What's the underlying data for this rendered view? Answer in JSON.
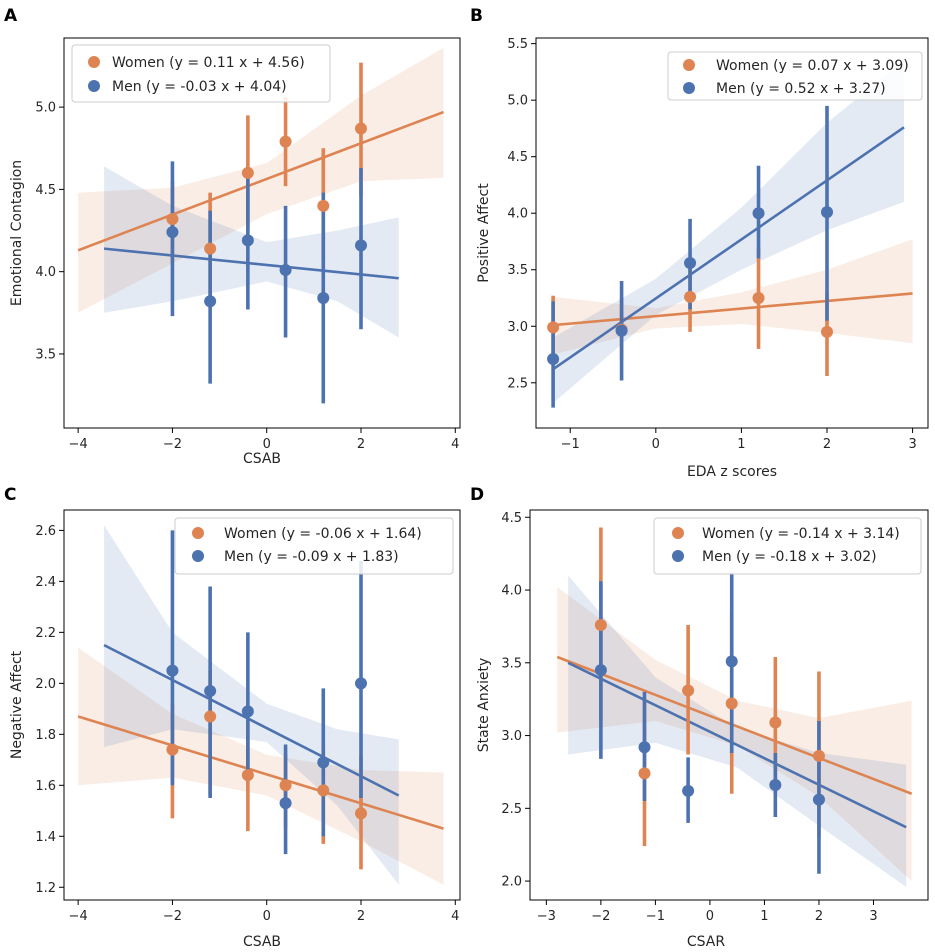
{
  "colors": {
    "women": "#DD8452",
    "men": "#4C72B0"
  },
  "chart_data": [
    {
      "panel": "A",
      "type": "scatter",
      "xlabel": "CSAB",
      "ylabel": "Emotional Contagion",
      "xlim": [
        -4.3,
        4.1
      ],
      "ylim": [
        3.05,
        5.42
      ],
      "xticks": [
        -4,
        -2,
        0,
        2,
        4
      ],
      "xtick_labels": [
        "−4",
        "−2",
        "0",
        "2",
        "4"
      ],
      "yticks": [
        3.5,
        4.0,
        4.5,
        5.0
      ],
      "ytick_labels": [
        "3.5",
        "4.0",
        "4.5",
        "5.0"
      ],
      "legend_position": "top-left",
      "series": [
        {
          "name": "Women (y = 0.11 x + 4.56)",
          "key": "women",
          "points": [
            {
              "x": -2.0,
              "y": 4.32,
              "lo": 4.06,
              "hi": 4.55
            },
            {
              "x": -1.2,
              "y": 4.14,
              "lo": 3.8,
              "hi": 4.48
            },
            {
              "x": -0.4,
              "y": 4.6,
              "lo": 4.25,
              "hi": 4.95
            },
            {
              "x": 0.4,
              "y": 4.79,
              "lo": 4.52,
              "hi": 5.06
            },
            {
              "x": 1.2,
              "y": 4.4,
              "lo": 4.06,
              "hi": 4.75
            },
            {
              "x": 2.0,
              "y": 4.87,
              "lo": 4.46,
              "hi": 5.27
            }
          ],
          "line": {
            "x0": -4.0,
            "y0": 4.13,
            "x1": 3.75,
            "y1": 4.97
          },
          "band": [
            {
              "x": -4.0,
              "lo": 3.75,
              "hi": 4.48
            },
            {
              "x": -2.0,
              "lo": 4.05,
              "hi": 4.51
            },
            {
              "x": 0.0,
              "lo": 4.35,
              "hi": 4.66
            },
            {
              "x": 2.0,
              "lo": 4.55,
              "hi": 5.07
            },
            {
              "x": 3.75,
              "lo": 4.57,
              "hi": 5.36
            }
          ]
        },
        {
          "name": "Men (y = -0.03 x + 4.04)",
          "key": "men",
          "points": [
            {
              "x": -2.0,
              "y": 4.24,
              "lo": 3.73,
              "hi": 4.67
            },
            {
              "x": -1.2,
              "y": 3.82,
              "lo": 3.32,
              "hi": 4.37
            },
            {
              "x": -0.4,
              "y": 4.19,
              "lo": 3.77,
              "hi": 4.62
            },
            {
              "x": 0.4,
              "y": 4.01,
              "lo": 3.6,
              "hi": 4.4
            },
            {
              "x": 1.2,
              "y": 3.84,
              "lo": 3.2,
              "hi": 4.48
            },
            {
              "x": 2.0,
              "y": 4.16,
              "lo": 3.65,
              "hi": 4.63
            }
          ],
          "line": {
            "x0": -3.45,
            "y0": 4.14,
            "x1": 2.8,
            "y1": 3.96
          },
          "band": [
            {
              "x": -3.45,
              "lo": 3.75,
              "hi": 4.64
            },
            {
              "x": -2.0,
              "lo": 3.82,
              "hi": 4.4
            },
            {
              "x": 0.0,
              "lo": 3.94,
              "hi": 4.18
            },
            {
              "x": 1.5,
              "lo": 3.82,
              "hi": 4.25
            },
            {
              "x": 2.8,
              "lo": 3.6,
              "hi": 4.33
            }
          ]
        }
      ]
    },
    {
      "panel": "B",
      "type": "scatter",
      "xlabel": "EDA z scores",
      "ylabel": "Positive Affect",
      "xlim": [
        -1.4,
        3.18
      ],
      "ylim": [
        2.1,
        5.55
      ],
      "xticks": [
        -1,
        0,
        1,
        2,
        3
      ],
      "xtick_labels": [
        "−1",
        "0",
        "1",
        "2",
        "3"
      ],
      "yticks": [
        2.5,
        3.0,
        3.5,
        4.0,
        4.5,
        5.0,
        5.5
      ],
      "ytick_labels": [
        "2.5",
        "3.0",
        "3.5",
        "4.0",
        "4.5",
        "5.0",
        "5.5"
      ],
      "legend_position": "top-right",
      "series": [
        {
          "name": "Women (y = 0.07 x + 3.09)",
          "key": "women",
          "points": [
            {
              "x": -1.2,
              "y": 2.99,
              "lo": 2.72,
              "hi": 3.27
            },
            {
              "x": -0.4,
              "y": 2.97,
              "lo": 2.7,
              "hi": 3.25
            },
            {
              "x": 0.4,
              "y": 3.26,
              "lo": 2.95,
              "hi": 3.58
            },
            {
              "x": 1.2,
              "y": 3.25,
              "lo": 2.8,
              "hi": 3.7
            },
            {
              "x": 2.0,
              "y": 2.95,
              "lo": 2.56,
              "hi": 3.3
            }
          ],
          "line": {
            "x0": -1.2,
            "y0": 3.01,
            "x1": 3.0,
            "y1": 3.29
          },
          "band": [
            {
              "x": -1.2,
              "lo": 2.75,
              "hi": 3.26
            },
            {
              "x": 0.0,
              "lo": 2.98,
              "hi": 3.16
            },
            {
              "x": 1.0,
              "lo": 3.02,
              "hi": 3.3
            },
            {
              "x": 2.0,
              "lo": 2.94,
              "hi": 3.5
            },
            {
              "x": 3.0,
              "lo": 2.85,
              "hi": 3.77
            }
          ]
        },
        {
          "name": "Men (y = 0.52 x + 3.27)",
          "key": "men",
          "points": [
            {
              "x": -1.2,
              "y": 2.71,
              "lo": 2.28,
              "hi": 3.22
            },
            {
              "x": -0.4,
              "y": 2.96,
              "lo": 2.52,
              "hi": 3.4
            },
            {
              "x": 0.4,
              "y": 3.56,
              "lo": 3.15,
              "hi": 3.95
            },
            {
              "x": 1.2,
              "y": 4.0,
              "lo": 3.6,
              "hi": 4.42
            },
            {
              "x": 2.0,
              "y": 4.01,
              "lo": 3.05,
              "hi": 4.95
            }
          ],
          "line": {
            "x0": -1.2,
            "y0": 2.62,
            "x1": 2.9,
            "y1": 4.76
          },
          "band": [
            {
              "x": -1.2,
              "lo": 2.32,
              "hi": 2.9
            },
            {
              "x": 0.0,
              "lo": 3.1,
              "hi": 3.42
            },
            {
              "x": 1.0,
              "lo": 3.5,
              "hi": 4.05
            },
            {
              "x": 2.0,
              "lo": 3.85,
              "hi": 4.8
            },
            {
              "x": 2.9,
              "lo": 4.1,
              "hi": 5.35
            }
          ]
        }
      ]
    },
    {
      "panel": "C",
      "type": "scatter",
      "xlabel": "CSAB",
      "ylabel": "Negative Affect",
      "xlim": [
        -4.3,
        4.1
      ],
      "ylim": [
        1.15,
        2.68
      ],
      "xticks": [
        -4,
        -2,
        0,
        2,
        4
      ],
      "xtick_labels": [
        "−4",
        "−2",
        "0",
        "2",
        "4"
      ],
      "yticks": [
        1.2,
        1.4,
        1.6,
        1.8,
        2.0,
        2.2,
        2.4,
        2.6
      ],
      "ytick_labels": [
        "1.2",
        "1.4",
        "1.6",
        "1.8",
        "2.0",
        "2.2",
        "2.4",
        "2.6"
      ],
      "legend_position": "top-right",
      "series": [
        {
          "name": "Women (y = -0.06 x + 1.64)",
          "key": "women",
          "points": [
            {
              "x": -2.0,
              "y": 1.74,
              "lo": 1.47,
              "hi": 1.92
            },
            {
              "x": -1.2,
              "y": 1.87,
              "lo": 1.56,
              "hi": 2.05
            },
            {
              "x": -0.4,
              "y": 1.64,
              "lo": 1.42,
              "hi": 1.85
            },
            {
              "x": 0.4,
              "y": 1.6,
              "lo": 1.43,
              "hi": 1.72
            },
            {
              "x": 1.2,
              "y": 1.58,
              "lo": 1.37,
              "hi": 1.76
            },
            {
              "x": 2.0,
              "y": 1.49,
              "lo": 1.27,
              "hi": 1.72
            }
          ],
          "line": {
            "x0": -4.0,
            "y0": 1.87,
            "x1": 3.75,
            "y1": 1.43
          },
          "band": [
            {
              "x": -4.0,
              "lo": 1.6,
              "hi": 2.14
            },
            {
              "x": -2.0,
              "lo": 1.63,
              "hi": 1.88
            },
            {
              "x": 0.0,
              "lo": 1.56,
              "hi": 1.72
            },
            {
              "x": 2.0,
              "lo": 1.38,
              "hi": 1.66
            },
            {
              "x": 3.75,
              "lo": 1.21,
              "hi": 1.65
            }
          ]
        },
        {
          "name": "Men (y = -0.09 x + 1.83)",
          "key": "men",
          "points": [
            {
              "x": -2.0,
              "y": 2.05,
              "lo": 1.6,
              "hi": 2.6
            },
            {
              "x": -1.2,
              "y": 1.97,
              "lo": 1.55,
              "hi": 2.38
            },
            {
              "x": -0.4,
              "y": 1.89,
              "lo": 1.62,
              "hi": 2.2
            },
            {
              "x": 0.4,
              "y": 1.53,
              "lo": 1.33,
              "hi": 1.76
            },
            {
              "x": 1.2,
              "y": 1.69,
              "lo": 1.4,
              "hi": 1.98
            },
            {
              "x": 2.0,
              "y": 2.0,
              "lo": 1.55,
              "hi": 2.48
            }
          ],
          "line": {
            "x0": -3.45,
            "y0": 2.15,
            "x1": 2.8,
            "y1": 1.56
          },
          "band": [
            {
              "x": -3.45,
              "lo": 1.75,
              "hi": 2.62
            },
            {
              "x": -2.0,
              "lo": 1.82,
              "hi": 2.2
            },
            {
              "x": 0.0,
              "lo": 1.77,
              "hi": 1.92
            },
            {
              "x": 1.5,
              "lo": 1.52,
              "hi": 1.82
            },
            {
              "x": 2.8,
              "lo": 1.21,
              "hi": 1.78
            }
          ]
        }
      ]
    },
    {
      "panel": "D",
      "type": "scatter",
      "xlabel": "CSAR",
      "ylabel": "State Anxiety",
      "xlim": [
        -3.3,
        4.0
      ],
      "ylim": [
        1.87,
        4.55
      ],
      "xticks": [
        -3,
        -2,
        -1,
        0,
        1,
        2,
        3
      ],
      "xtick_labels": [
        "−3",
        "−2",
        "−1",
        "0",
        "1",
        "2",
        "3"
      ],
      "yticks": [
        2.0,
        2.5,
        3.0,
        3.5,
        4.0,
        4.5
      ],
      "ytick_labels": [
        "2.0",
        "2.5",
        "3.0",
        "3.5",
        "4.0",
        "4.5"
      ],
      "legend_position": "top-right",
      "series": [
        {
          "name": "Women (y = -0.14 x + 3.14)",
          "key": "women",
          "points": [
            {
              "x": -2.0,
              "y": 3.76,
              "lo": 3.1,
              "hi": 4.43
            },
            {
              "x": -1.2,
              "y": 2.74,
              "lo": 2.24,
              "hi": 3.25
            },
            {
              "x": -0.4,
              "y": 3.31,
              "lo": 2.87,
              "hi": 3.76
            },
            {
              "x": 0.4,
              "y": 3.22,
              "lo": 2.6,
              "hi": 3.85
            },
            {
              "x": 1.2,
              "y": 3.09,
              "lo": 2.65,
              "hi": 3.54
            },
            {
              "x": 2.0,
              "y": 2.86,
              "lo": 2.3,
              "hi": 3.44
            }
          ],
          "line": {
            "x0": -2.8,
            "y0": 3.54,
            "x1": 3.7,
            "y1": 2.6
          },
          "band": [
            {
              "x": -2.8,
              "lo": 3.02,
              "hi": 4.02
            },
            {
              "x": -1.0,
              "lo": 3.1,
              "hi": 3.52
            },
            {
              "x": 0.5,
              "lo": 2.93,
              "hi": 3.24
            },
            {
              "x": 2.0,
              "lo": 2.58,
              "hi": 3.12
            },
            {
              "x": 3.7,
              "lo": 2.0,
              "hi": 3.24
            }
          ]
        },
        {
          "name": "Men (y = -0.18 x + 3.02)",
          "key": "men",
          "points": [
            {
              "x": -2.0,
              "y": 3.45,
              "lo": 2.84,
              "hi": 4.06
            },
            {
              "x": -1.2,
              "y": 2.92,
              "lo": 2.55,
              "hi": 3.3
            },
            {
              "x": -0.4,
              "y": 2.62,
              "lo": 2.4,
              "hi": 2.85
            },
            {
              "x": 0.4,
              "y": 3.51,
              "lo": 2.88,
              "hi": 4.12
            },
            {
              "x": 1.2,
              "y": 2.66,
              "lo": 2.44,
              "hi": 2.88
            },
            {
              "x": 2.0,
              "y": 2.56,
              "lo": 2.05,
              "hi": 3.1
            }
          ],
          "line": {
            "x0": -2.6,
            "y0": 3.5,
            "x1": 3.6,
            "y1": 2.37
          },
          "band": [
            {
              "x": -2.6,
              "lo": 2.87,
              "hi": 4.1
            },
            {
              "x": -1.0,
              "lo": 2.95,
              "hi": 3.4
            },
            {
              "x": 0.5,
              "lo": 2.78,
              "hi": 3.05
            },
            {
              "x": 2.0,
              "lo": 2.38,
              "hi": 2.88
            },
            {
              "x": 3.6,
              "lo": 1.96,
              "hi": 2.8
            }
          ]
        }
      ]
    }
  ]
}
